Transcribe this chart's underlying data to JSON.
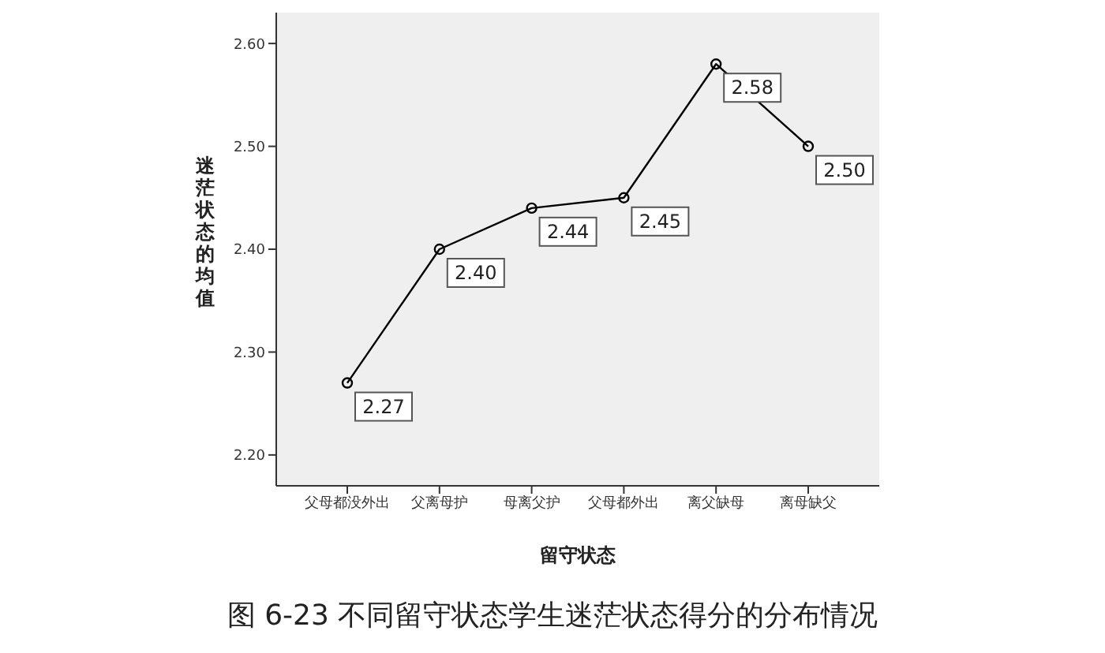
{
  "chart_data": {
    "type": "line",
    "title": "图 6-23    不同留守状态学生迷茫状态得分的分布情况",
    "xlabel": "留守状态",
    "ylabel": "迷茫状态的均值",
    "categories": [
      "父母都没外出",
      "父离母护",
      "母离父护",
      "父母都外出",
      "离父缺母",
      "离母缺父"
    ],
    "values": [
      2.27,
      2.4,
      2.44,
      2.45,
      2.58,
      2.5
    ],
    "value_labels": [
      "2.27",
      "2.40",
      "2.44",
      "2.45",
      "2.58",
      "2.50"
    ],
    "color": "#000000",
    "marker": "circle",
    "grid": false,
    "ylim": [
      2.17,
      2.63
    ],
    "yticks": [
      {
        "value": 2.2,
        "label": "2.20"
      },
      {
        "value": 2.3,
        "label": "2.30"
      },
      {
        "value": 2.4,
        "label": "2.40"
      },
      {
        "value": 2.5,
        "label": "2.50"
      },
      {
        "value": 2.6,
        "label": "2.60"
      }
    ]
  }
}
